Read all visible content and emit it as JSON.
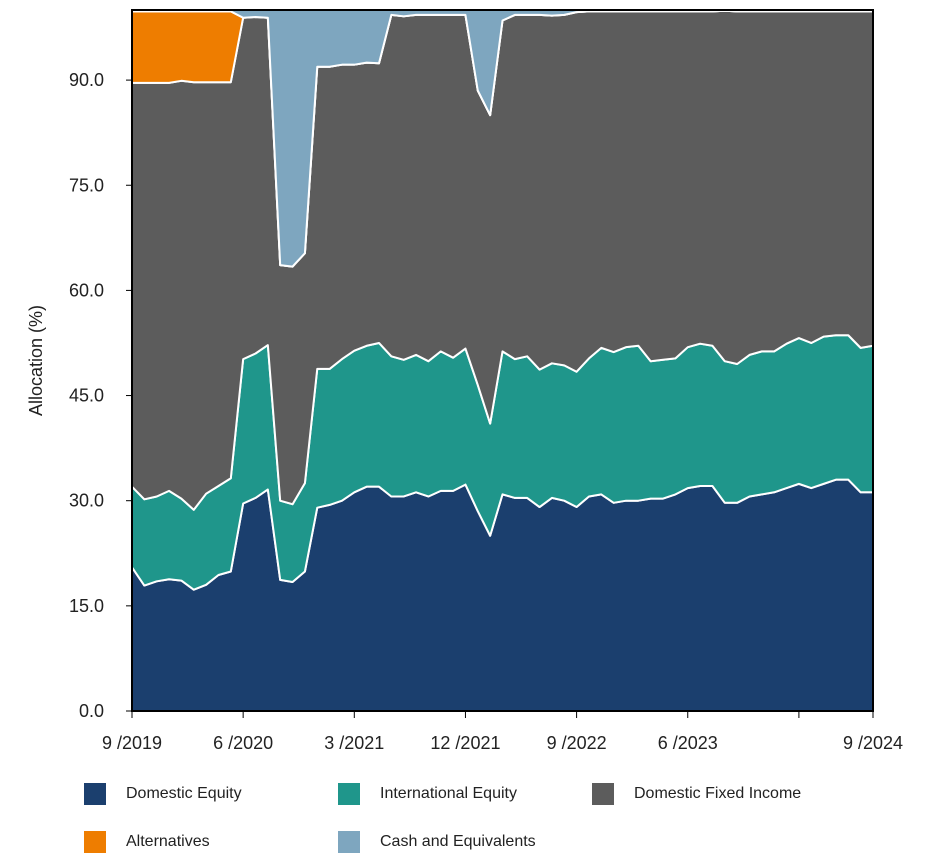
{
  "chart_data": {
    "type": "area",
    "stacked": true,
    "ylabel": "Allocation (%)",
    "ylim": [
      0,
      100
    ],
    "yticks": [
      "0.0",
      "15.0",
      "30.0",
      "45.0",
      "60.0",
      "75.0",
      "90.0"
    ],
    "xtick_labels": [
      "9 /2019",
      "6 /2020",
      "3 /2021",
      "12 /2021",
      "9 /2022",
      "6 /2023",
      "9 /2024"
    ],
    "grid": false,
    "legend_position": "bottom",
    "x": [
      "2019-09",
      "2019-10",
      "2019-11",
      "2019-12",
      "2020-01",
      "2020-02",
      "2020-03",
      "2020-04",
      "2020-05",
      "2020-06",
      "2020-07",
      "2020-08",
      "2020-09",
      "2020-10",
      "2020-11",
      "2020-12",
      "2021-01",
      "2021-02",
      "2021-03",
      "2021-04",
      "2021-05",
      "2021-06",
      "2021-07",
      "2021-08",
      "2021-09",
      "2021-10",
      "2021-11",
      "2021-12",
      "2022-01",
      "2022-02",
      "2022-03",
      "2022-04",
      "2022-05",
      "2022-06",
      "2022-07",
      "2022-08",
      "2022-09",
      "2022-10",
      "2022-11",
      "2022-12",
      "2023-01",
      "2023-02",
      "2023-03",
      "2023-04",
      "2023-05",
      "2023-06",
      "2023-07",
      "2023-08",
      "2023-09",
      "2023-10",
      "2023-11",
      "2023-12",
      "2024-01",
      "2024-02",
      "2024-03",
      "2024-04",
      "2024-05",
      "2024-06",
      "2024-07",
      "2024-08",
      "2024-09"
    ],
    "series": [
      {
        "name": "Domestic Equity",
        "color": "#1b3f6e",
        "values": [
          20.5,
          17.9,
          18.5,
          18.8,
          18.6,
          17.3,
          18.0,
          19.4,
          19.9,
          29.6,
          30.4,
          31.6,
          18.7,
          18.4,
          19.9,
          29.0,
          29.4,
          30.0,
          31.2,
          32.0,
          32.0,
          30.6,
          30.6,
          31.2,
          30.6,
          31.4,
          31.4,
          32.3,
          28.5,
          25.0,
          30.9,
          30.4,
          30.4,
          29.1,
          30.4,
          30.0,
          29.1,
          30.6,
          30.9,
          29.7,
          30.0,
          30.0,
          30.3,
          30.3,
          30.9,
          31.8,
          32.1,
          32.1,
          29.7,
          29.7,
          30.6,
          30.9,
          31.2,
          31.8,
          32.4,
          31.8,
          32.4,
          33.0,
          33.0,
          31.2,
          31.2
        ]
      },
      {
        "name": "International Equity",
        "color": "#1f968b",
        "values": [
          11.5,
          12.3,
          12.1,
          12.6,
          11.7,
          11.4,
          13.0,
          12.7,
          13.3,
          20.6,
          20.6,
          20.6,
          11.3,
          11.1,
          12.6,
          19.8,
          19.4,
          20.2,
          20.2,
          20.1,
          20.5,
          20.0,
          19.5,
          19.6,
          19.3,
          19.9,
          19.0,
          19.4,
          18.0,
          16.0,
          20.4,
          19.8,
          20.2,
          19.6,
          19.2,
          19.3,
          19.3,
          19.7,
          20.9,
          21.5,
          21.9,
          22.1,
          19.6,
          19.8,
          19.4,
          20.1,
          20.3,
          20.0,
          20.2,
          19.8,
          20.2,
          20.4,
          20.1,
          20.6,
          20.8,
          20.7,
          21.0,
          20.6,
          20.6,
          20.6,
          20.9
        ]
      },
      {
        "name": "Domestic Fixed Income",
        "color": "#5c5c5c",
        "values": [
          57.6,
          59.4,
          59.0,
          58.2,
          59.6,
          61.0,
          58.7,
          57.6,
          56.5,
          48.7,
          48.0,
          46.7,
          33.6,
          33.9,
          32.8,
          43.1,
          43.1,
          42.0,
          40.8,
          40.4,
          39.9,
          48.7,
          49.0,
          48.5,
          49.4,
          48.0,
          48.9,
          47.6,
          42.0,
          44.0,
          47.2,
          49.1,
          48.7,
          50.6,
          49.6,
          50.0,
          51.3,
          49.5,
          48.0,
          48.6,
          47.9,
          47.7,
          49.9,
          49.7,
          49.5,
          47.9,
          47.4,
          47.7,
          50.0,
          50.3,
          49.0,
          48.5,
          48.5,
          47.4,
          46.6,
          47.3,
          46.4,
          46.2,
          46.2,
          48.0,
          47.7
        ]
      },
      {
        "name": "Alternatives",
        "color": "#ee7d00",
        "values": [
          10.2,
          10.2,
          10.2,
          10.2,
          9.9,
          10.1,
          10.1,
          10.1,
          10.1,
          0,
          0,
          0,
          0,
          0,
          0,
          0,
          0,
          0,
          0,
          0,
          0,
          0,
          0,
          0,
          0,
          0,
          0,
          0,
          0,
          0,
          0,
          0,
          0,
          0,
          0,
          0,
          0,
          0,
          0,
          0,
          0,
          0,
          0,
          0,
          0,
          0,
          0,
          0,
          0,
          0,
          0,
          0,
          0,
          0,
          0,
          0,
          0,
          0,
          0,
          0,
          0
        ]
      },
      {
        "name": "Cash and Equivalents",
        "color": "#7ea6bf",
        "values": [
          0.2,
          0.2,
          0.2,
          0.2,
          0.2,
          0.2,
          0.2,
          0.2,
          0.2,
          1.1,
          1.0,
          1.1,
          36.4,
          36.6,
          34.7,
          8.1,
          8.1,
          7.8,
          7.8,
          7.5,
          7.6,
          0.7,
          0.9,
          0.7,
          0.7,
          0.7,
          0.7,
          0.7,
          11.5,
          15.0,
          1.5,
          0.7,
          0.7,
          0.7,
          0.8,
          0.7,
          0.3,
          0.2,
          0.2,
          0.2,
          0.2,
          0.2,
          0.2,
          0.2,
          0.2,
          0.2,
          0.2,
          0.2,
          0.1,
          0.2,
          0.2,
          0.2,
          0.2,
          0.2,
          0.2,
          0.2,
          0.2,
          0.2,
          0.2,
          0.2,
          0.2
        ]
      }
    ]
  }
}
